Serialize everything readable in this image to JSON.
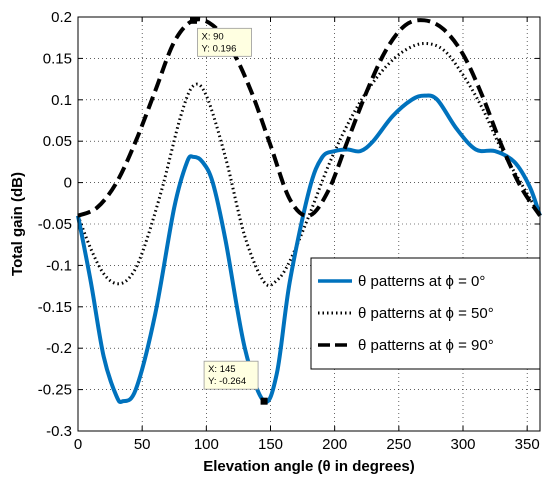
{
  "chart_data": {
    "type": "line",
    "title": "",
    "xlabel": "Elevation angle (θ in degrees)",
    "ylabel": "Total gain (dB)",
    "xlim": [
      0,
      360
    ],
    "ylim": [
      -0.3,
      0.2
    ],
    "xticks": [
      "0",
      "50",
      "100",
      "150",
      "200",
      "250",
      "300",
      "350"
    ],
    "yticks": [
      "0.2",
      "0.15",
      "0.1",
      "0.05",
      "0",
      "-0.05",
      "-0.1",
      "-0.15",
      "-0.2",
      "-0.25",
      "-0.3"
    ],
    "grid": true,
    "legend_position": "lower-right",
    "series": [
      {
        "name": "θ patterns at ϕ = 0°",
        "color": "#0072BD",
        "style": "solid",
        "x": [
          0,
          10,
          20,
          30,
          35,
          45,
          60,
          75,
          85,
          90,
          97,
          105,
          115,
          130,
          145,
          155,
          165,
          180,
          190,
          200,
          210,
          220,
          230,
          245,
          260,
          270,
          280,
          295,
          310,
          325,
          340,
          352,
          360
        ],
        "y": [
          -0.04,
          -0.12,
          -0.21,
          -0.258,
          -0.264,
          -0.25,
          -0.16,
          -0.03,
          0.025,
          0.031,
          0.025,
          0.0,
          -0.07,
          -0.2,
          -0.264,
          -0.23,
          -0.12,
          -0.01,
          0.03,
          0.038,
          0.04,
          0.038,
          0.05,
          0.08,
          0.1,
          0.105,
          0.1,
          0.065,
          0.04,
          0.038,
          0.025,
          -0.005,
          -0.04
        ]
      },
      {
        "name": "θ patterns at ϕ = 50°",
        "color": "#000000",
        "style": "dotted",
        "x": [
          0,
          10,
          20,
          30,
          40,
          50,
          65,
          80,
          90,
          100,
          115,
          130,
          145,
          155,
          165,
          180,
          195,
          210,
          225,
          240,
          255,
          270,
          285,
          300,
          315,
          330,
          345,
          360
        ],
        "y": [
          -0.04,
          -0.08,
          -0.11,
          -0.122,
          -0.115,
          -0.085,
          -0.01,
          0.08,
          0.117,
          0.105,
          0.03,
          -0.065,
          -0.12,
          -0.118,
          -0.095,
          -0.04,
          0.02,
          0.07,
          0.11,
          0.14,
          0.16,
          0.168,
          0.16,
          0.13,
          0.09,
          0.04,
          0.0,
          -0.04
        ]
      },
      {
        "name": "θ patterns at ϕ = 90°",
        "color": "#000000",
        "style": "dashed",
        "x": [
          0,
          15,
          30,
          45,
          60,
          75,
          90,
          105,
          120,
          135,
          150,
          165,
          180,
          195,
          210,
          225,
          240,
          255,
          270,
          285,
          300,
          315,
          330,
          345,
          360
        ],
        "y": [
          -0.04,
          -0.03,
          0.0,
          0.05,
          0.11,
          0.17,
          0.196,
          0.19,
          0.16,
          0.11,
          0.045,
          -0.02,
          -0.04,
          -0.01,
          0.05,
          0.11,
          0.16,
          0.19,
          0.196,
          0.185,
          0.155,
          0.105,
          0.045,
          -0.005,
          -0.04
        ]
      }
    ],
    "annotations": [
      {
        "x": 90,
        "y": 0.196,
        "line1": "X: 90",
        "line2": "Y: 0.196"
      },
      {
        "x": 145,
        "y": -0.264,
        "line1": "X: 145",
        "line2": "Y: -0.264"
      }
    ]
  }
}
